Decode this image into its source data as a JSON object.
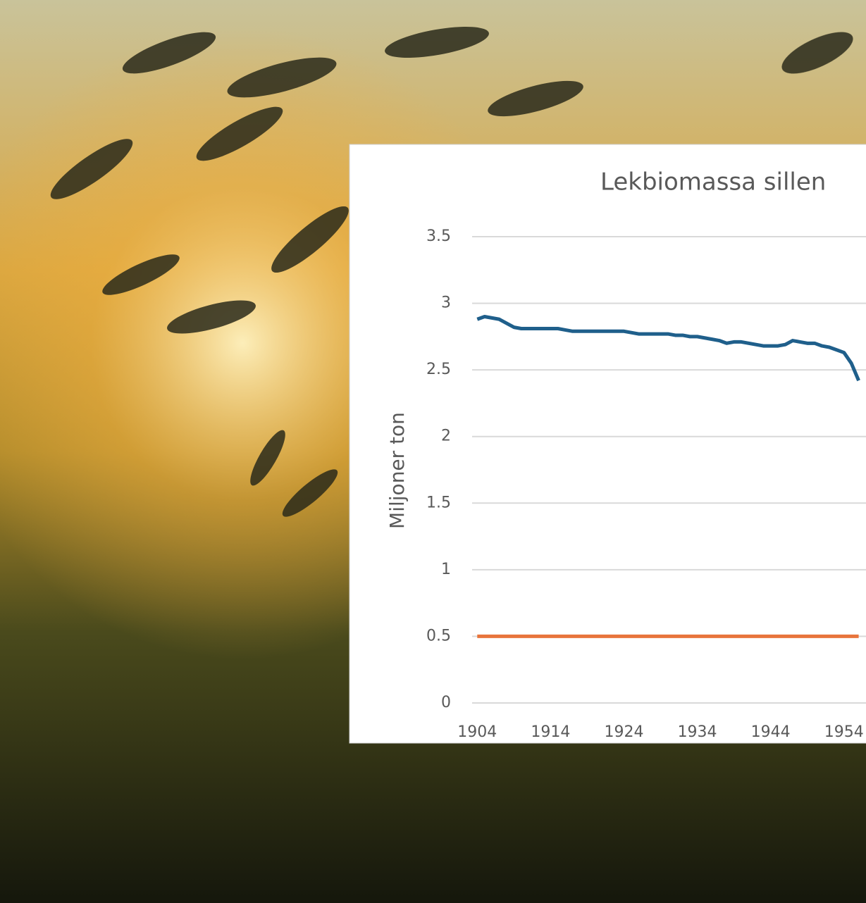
{
  "chart_data": {
    "type": "line",
    "title": "Lekbiomassa sillen",
    "y_label": "Miljoner ton",
    "x": [
      1904,
      1905,
      1906,
      1907,
      1908,
      1909,
      1910,
      1911,
      1912,
      1913,
      1914,
      1915,
      1916,
      1917,
      1918,
      1919,
      1920,
      1921,
      1922,
      1923,
      1924,
      1925,
      1926,
      1927,
      1928,
      1929,
      1930,
      1931,
      1932,
      1933,
      1934,
      1935,
      1936,
      1937,
      1938,
      1939,
      1940,
      1941,
      1942,
      1943,
      1944,
      1945,
      1946,
      1947,
      1948,
      1949,
      1950,
      1951,
      1952,
      1953,
      1954,
      1955,
      1956
    ],
    "series": [
      {
        "color": "#1f5f8b",
        "values": [
          2.88,
          2.9,
          2.89,
          2.88,
          2.85,
          2.82,
          2.81,
          2.81,
          2.81,
          2.81,
          2.81,
          2.81,
          2.8,
          2.79,
          2.79,
          2.79,
          2.79,
          2.79,
          2.79,
          2.79,
          2.79,
          2.78,
          2.77,
          2.77,
          2.77,
          2.77,
          2.77,
          2.76,
          2.76,
          2.75,
          2.75,
          2.74,
          2.73,
          2.72,
          2.7,
          2.71,
          2.71,
          2.7,
          2.69,
          2.68,
          2.68,
          2.68,
          2.69,
          2.72,
          2.71,
          2.7,
          2.7,
          2.68,
          2.67,
          2.65,
          2.63,
          2.55,
          2.42
        ]
      },
      {
        "color": "#e8743b",
        "values": [
          0.5,
          0.5,
          0.5,
          0.5,
          0.5,
          0.5,
          0.5,
          0.5,
          0.5,
          0.5,
          0.5,
          0.5,
          0.5,
          0.5,
          0.5,
          0.5,
          0.5,
          0.5,
          0.5,
          0.5,
          0.5,
          0.5,
          0.5,
          0.5,
          0.5,
          0.5,
          0.5,
          0.5,
          0.5,
          0.5,
          0.5,
          0.5,
          0.5,
          0.5,
          0.5,
          0.5,
          0.5,
          0.5,
          0.5,
          0.5,
          0.5,
          0.5,
          0.5,
          0.5,
          0.5,
          0.5,
          0.5,
          0.5,
          0.5,
          0.5,
          0.5,
          0.5,
          0.5
        ]
      }
    ],
    "xlim": [
      1903.3,
      1957
    ],
    "xticks": [
      1904,
      1914,
      1924,
      1934,
      1944,
      1954
    ],
    "ylim": [
      0,
      3.5
    ],
    "yticks": [
      0,
      0.5,
      1,
      1.5,
      2,
      2.5,
      3,
      3.5
    ],
    "grid": true
  }
}
